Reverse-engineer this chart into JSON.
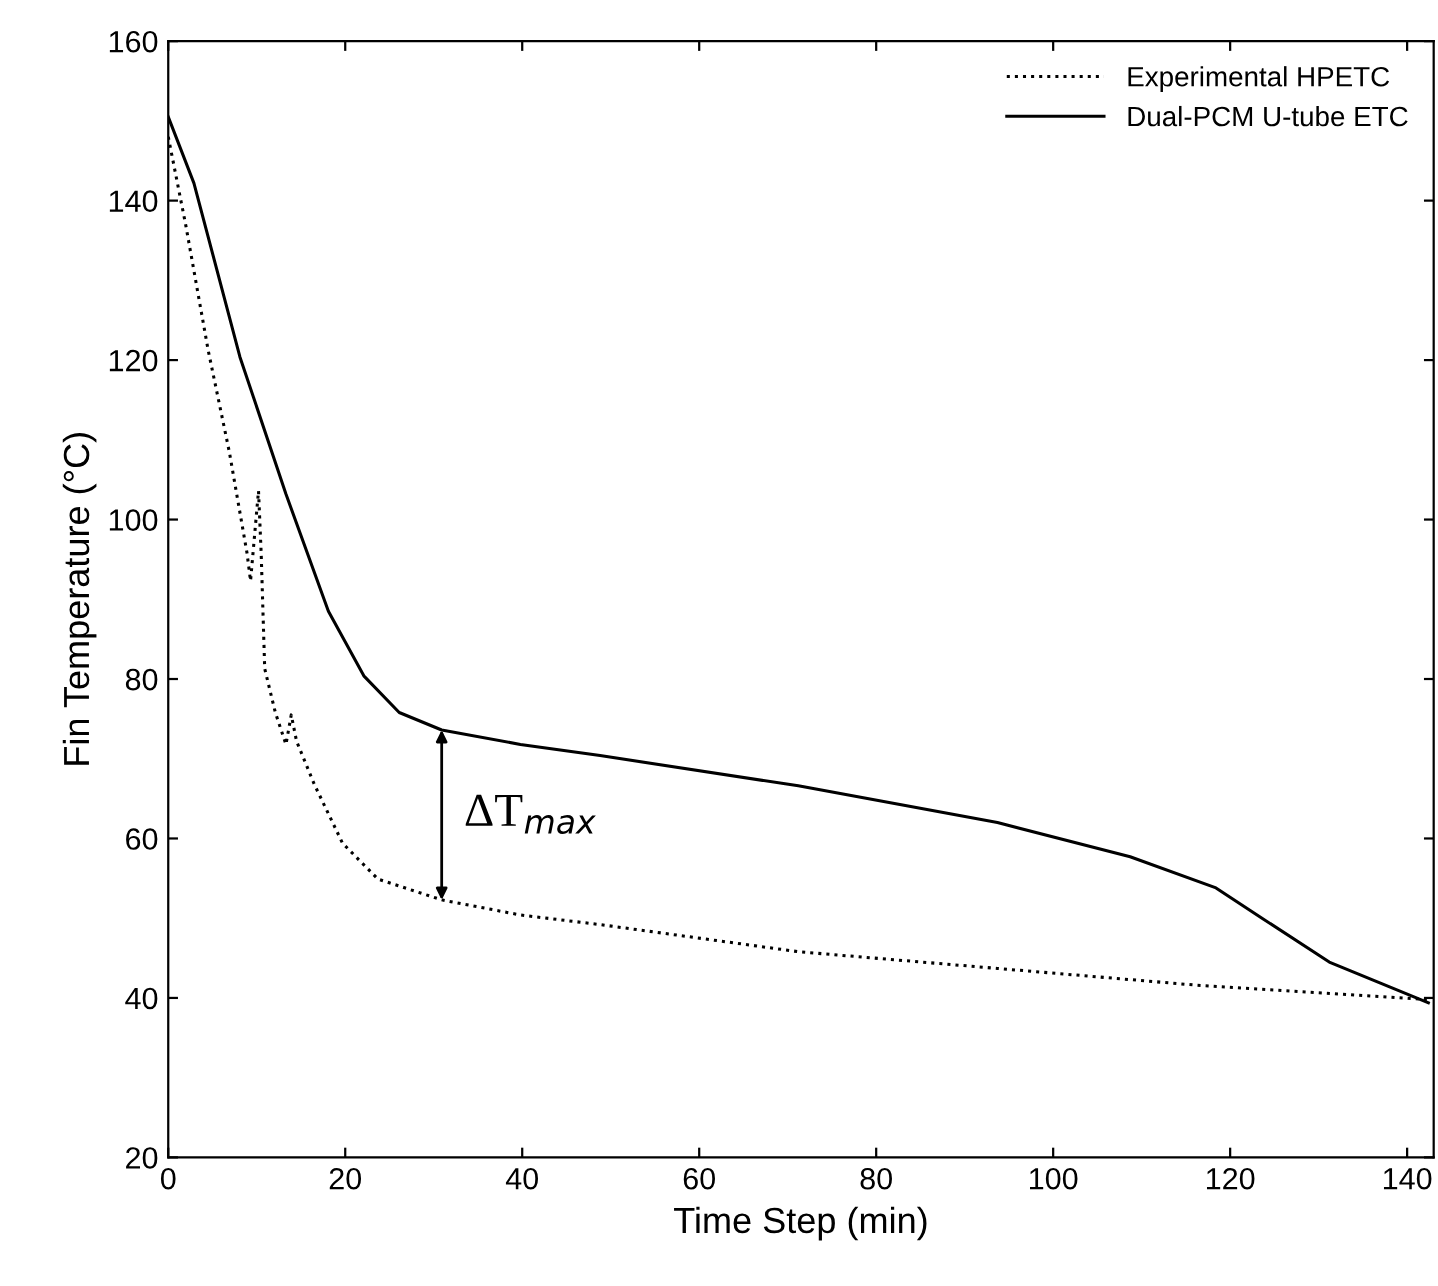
{
  "chart_data": {
    "type": "line",
    "xlabel": "Time Step (min)",
    "ylabel": "Fin Temperature (°C)",
    "xlim": [
      0,
      143
    ],
    "ylim": [
      20,
      160
    ],
    "xticks": [
      0,
      20,
      40,
      60,
      80,
      100,
      120,
      140
    ],
    "yticks": [
      20,
      40,
      60,
      80,
      100,
      120,
      140,
      160
    ],
    "grid": false,
    "legend": "top right",
    "marker": "none",
    "annotations": [
      {
        "text": "ΔT$_{max}$",
        "x": 30.9,
        "y": 73.6
      }
    ],
    "series": [
      {
        "name": "Experimental HPETC",
        "color": "#000000",
        "line_style": "dotted",
        "x": [
          0,
          2,
          4.5,
          6.9,
          8.9,
          9.3,
          10.2,
          10.5,
          10.9,
          12.1,
          13.3,
          13.9,
          14.5,
          16.5,
          19.7,
          23.7,
          30.9,
          39.8,
          48.8,
          71.2,
          93.7,
          116.2,
          142.4
        ],
        "values": [
          148,
          136.8,
          121.3,
          108.5,
          95.8,
          92.3,
          103.6,
          95.8,
          81.3,
          75.8,
          71.8,
          75.5,
          72.2,
          66.8,
          59.4,
          54.9,
          52.3,
          50.4,
          49.2,
          45.8,
          43.7,
          41.6,
          39.8
        ]
      },
      {
        "name": "Dual-PCM U-tube ETC",
        "color": "#000000",
        "line_style": "solid",
        "x": [
          0,
          2.9,
          8.1,
          13.3,
          18.1,
          22.1,
          26.1,
          30.9,
          39.8,
          48.8,
          71.2,
          93.7,
          108.7,
          118.4,
          123.6,
          131.2,
          142.4
        ],
        "values": [
          150.5,
          142.2,
          120.4,
          103.2,
          88.5,
          80.4,
          75.8,
          73.6,
          71.8,
          70.4,
          66.6,
          62,
          57.7,
          53.8,
          50,
          44.5,
          39.4
        ]
      }
    ]
  }
}
